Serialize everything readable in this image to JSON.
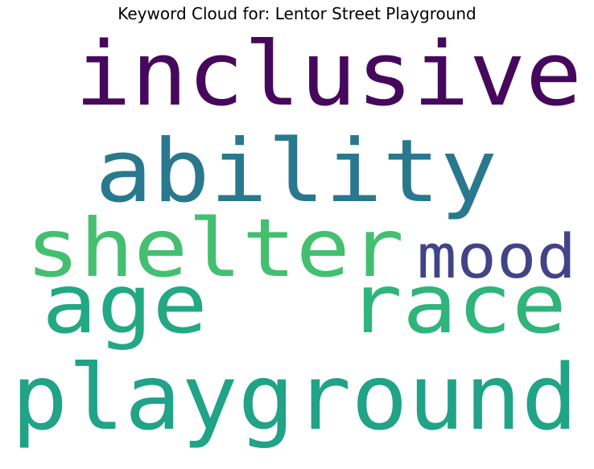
{
  "title": "Keyword Cloud for: Lentor Street Playground",
  "words": {
    "inclusive": {
      "text": "inclusive",
      "color": "#46085c"
    },
    "ability": {
      "text": "ability",
      "color": "#2a788e"
    },
    "shelter": {
      "text": "shelter",
      "color": "#44bf70"
    },
    "mood": {
      "text": "mood",
      "color": "#414487"
    },
    "age": {
      "text": "age",
      "color": "#22a884"
    },
    "race": {
      "text": "race",
      "color": "#2fb47c"
    },
    "playground": {
      "text": "playground",
      "color": "#20a386"
    }
  }
}
